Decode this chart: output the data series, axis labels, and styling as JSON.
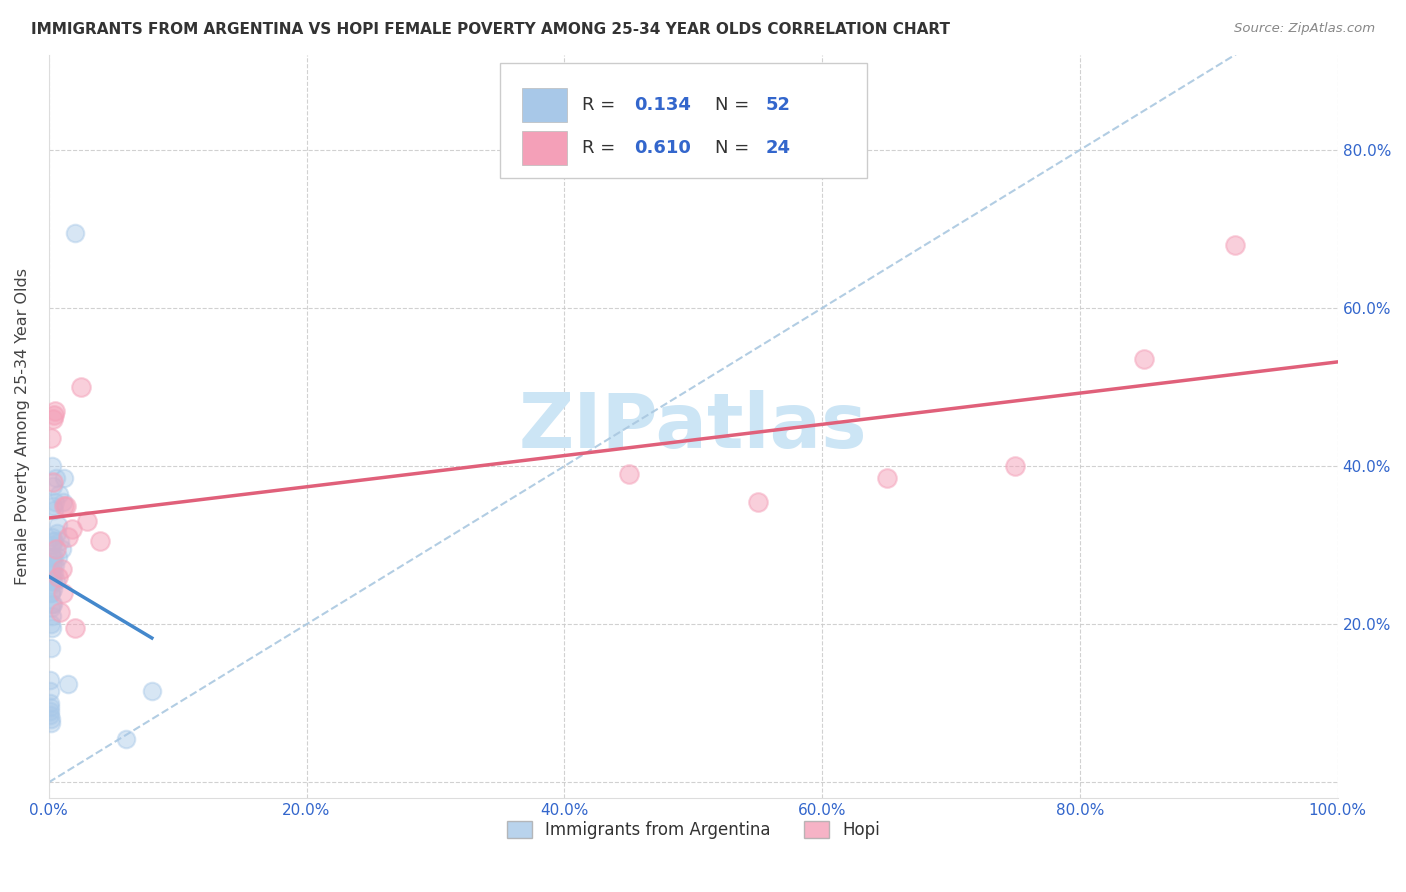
{
  "title": "IMMIGRANTS FROM ARGENTINA VS HOPI FEMALE POVERTY AMONG 25-34 YEAR OLDS CORRELATION CHART",
  "source": "Source: ZipAtlas.com",
  "ylabel": "Female Poverty Among 25-34 Year Olds",
  "xlim": [
    0,
    1.0
  ],
  "ylim": [
    -0.02,
    0.92
  ],
  "xticks": [
    0.0,
    0.2,
    0.4,
    0.6,
    0.8,
    1.0
  ],
  "xticklabels": [
    "0.0%",
    "20.0%",
    "40.0%",
    "60.0%",
    "80.0%",
    "100.0%"
  ],
  "yticks": [
    0.0,
    0.2,
    0.4,
    0.6,
    0.8
  ],
  "yticklabels": [
    "",
    "20.0%",
    "40.0%",
    "60.0%",
    "80.0%"
  ],
  "blue_color": "#a8c8e8",
  "pink_color": "#f4a0b8",
  "blue_line_color": "#4488cc",
  "pink_line_color": "#e0607a",
  "dashed_line_color": "#aac8e0",
  "argentina_x": [
    0.0008,
    0.001,
    0.001,
    0.0012,
    0.0012,
    0.0013,
    0.0014,
    0.0015,
    0.0016,
    0.0017,
    0.0018,
    0.0018,
    0.002,
    0.002,
    0.0021,
    0.0022,
    0.0023,
    0.0023,
    0.0024,
    0.0025,
    0.0026,
    0.0027,
    0.0027,
    0.0028,
    0.0029,
    0.003,
    0.0031,
    0.0032,
    0.0033,
    0.0034,
    0.0035,
    0.0036,
    0.0038,
    0.004,
    0.0042,
    0.0044,
    0.0046,
    0.005,
    0.0055,
    0.006,
    0.0065,
    0.007,
    0.0075,
    0.008,
    0.009,
    0.01,
    0.011,
    0.012,
    0.015,
    0.02,
    0.06,
    0.08
  ],
  "argentina_y": [
    0.13,
    0.115,
    0.1,
    0.095,
    0.09,
    0.085,
    0.08,
    0.075,
    0.24,
    0.22,
    0.2,
    0.17,
    0.265,
    0.25,
    0.24,
    0.225,
    0.21,
    0.195,
    0.3,
    0.285,
    0.265,
    0.31,
    0.285,
    0.255,
    0.4,
    0.35,
    0.305,
    0.255,
    0.225,
    0.275,
    0.245,
    0.375,
    0.345,
    0.305,
    0.265,
    0.285,
    0.355,
    0.275,
    0.385,
    0.255,
    0.315,
    0.285,
    0.325,
    0.365,
    0.305,
    0.295,
    0.355,
    0.385,
    0.125,
    0.695,
    0.055,
    0.115
  ],
  "hopi_x": [
    0.002,
    0.003,
    0.0035,
    0.004,
    0.005,
    0.006,
    0.007,
    0.009,
    0.01,
    0.011,
    0.012,
    0.013,
    0.015,
    0.018,
    0.02,
    0.025,
    0.03,
    0.04,
    0.45,
    0.55,
    0.65,
    0.75,
    0.85,
    0.92
  ],
  "hopi_y": [
    0.435,
    0.46,
    0.38,
    0.465,
    0.47,
    0.295,
    0.26,
    0.215,
    0.27,
    0.24,
    0.35,
    0.35,
    0.31,
    0.32,
    0.195,
    0.5,
    0.33,
    0.305,
    0.39,
    0.355,
    0.385,
    0.4,
    0.535,
    0.68
  ],
  "argentina_r": 0.134,
  "argentina_n": 52,
  "hopi_r": 0.61,
  "hopi_n": 24,
  "bg_color": "#ffffff",
  "watermark_color": "#cce5f5",
  "watermark_fontsize": 55
}
